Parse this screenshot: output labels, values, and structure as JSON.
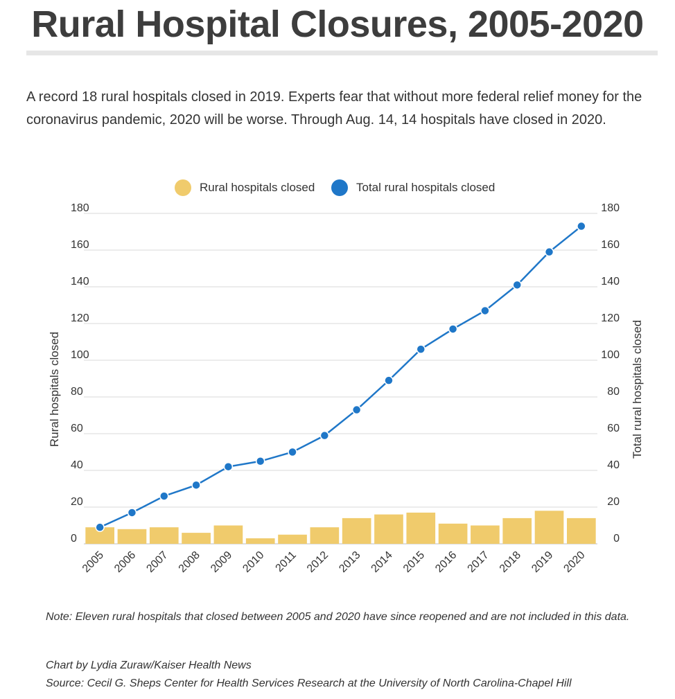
{
  "header": {
    "title": "Rural Hospital Closures, 2005-2020",
    "subtitle": "A record 18 rural hospitals closed in 2019. Experts fear that without more federal relief money for the coronavirus pandemic, 2020 will be worse. Through Aug. 14, 14 hospitals have closed in 2020."
  },
  "colors": {
    "bar": "#f0cb6c",
    "line": "#1f77c8",
    "grid": "#d9d9d9",
    "text": "#333333"
  },
  "chart_data": {
    "type": "bar",
    "combo": "bar + line (dual y-axes)",
    "categories": [
      "2005",
      "2006",
      "2007",
      "2008",
      "2009",
      "2010",
      "2011",
      "2012",
      "2013",
      "2014",
      "2015",
      "2016",
      "2017",
      "2018",
      "2019",
      "2020"
    ],
    "series": [
      {
        "name": "Rural hospitals closed",
        "type": "bar",
        "axis": "left",
        "values": [
          9,
          8,
          9,
          6,
          10,
          3,
          5,
          9,
          14,
          16,
          17,
          11,
          10,
          14,
          18,
          14
        ]
      },
      {
        "name": "Total rural hospitals closed",
        "type": "line",
        "axis": "right",
        "values": [
          9,
          17,
          26,
          32,
          42,
          45,
          50,
          59,
          73,
          89,
          106,
          117,
          127,
          141,
          159,
          173
        ]
      }
    ],
    "ylabel": "Rural hospitals closed",
    "y2label": "Total rural hospitals closed",
    "ylim": [
      0,
      180
    ],
    "y2lim": [
      0,
      180
    ],
    "yticks": [
      "0",
      "20",
      "40",
      "60",
      "80",
      "100",
      "120",
      "140",
      "160",
      "180"
    ],
    "grid": true,
    "legend_position": "top-center"
  },
  "footer": {
    "note": "Note: Eleven rural hospitals that closed between 2005 and 2020 have since reopened and are not included in this data.",
    "credit": "Chart by Lydia Zuraw/Kaiser Health News",
    "source": "Source: Cecil G. Sheps Center for Health Services Research at the University of North Carolina-Chapel Hill"
  }
}
